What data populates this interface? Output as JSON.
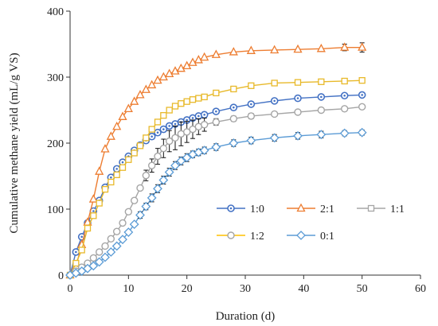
{
  "chart_data": {
    "type": "line",
    "title": "",
    "xlabel": "Duration (d)",
    "ylabel": "Cumulative methane yield (mL/g VS)",
    "xlim": [
      0,
      60
    ],
    "ylim": [
      0,
      400
    ],
    "xticks": [
      "0",
      "10",
      "20",
      "30",
      "40",
      "50",
      "60"
    ],
    "yticks": [
      "0",
      "100",
      "200",
      "300",
      "400"
    ],
    "grid": false,
    "legend_position": "inside-bottom-right",
    "series": [
      {
        "name": "1:0",
        "color": "#4472C4",
        "marker": "circle-dot",
        "x": [
          0,
          1,
          2,
          3,
          4,
          5,
          6,
          7,
          8,
          9,
          10,
          11,
          12,
          13,
          14,
          15,
          16,
          17,
          18,
          19,
          20,
          21,
          22,
          23,
          25,
          28,
          31,
          35,
          39,
          43,
          47,
          50
        ],
        "y": [
          0,
          35,
          58,
          79,
          97,
          113,
          133,
          148,
          161,
          171,
          180,
          189,
          197,
          204,
          210,
          216,
          221,
          226,
          229,
          232,
          235,
          238,
          241,
          243,
          248,
          254,
          259,
          264,
          268,
          270,
          272,
          273
        ],
        "err": [
          0,
          0,
          0,
          0,
          0,
          0,
          0,
          0,
          0,
          0,
          0,
          0,
          0,
          0,
          0,
          0,
          0,
          0,
          0,
          0,
          0,
          0,
          0,
          0,
          0,
          0,
          0,
          0,
          0,
          0,
          0,
          0
        ]
      },
      {
        "name": "2:1",
        "color": "#ED7D31",
        "marker": "triangle",
        "x": [
          0,
          1,
          2,
          3,
          4,
          5,
          6,
          7,
          8,
          9,
          10,
          11,
          12,
          13,
          14,
          15,
          16,
          17,
          18,
          19,
          20,
          21,
          22,
          23,
          25,
          28,
          31,
          35,
          39,
          43,
          47,
          50
        ],
        "y": [
          0,
          13,
          46,
          80,
          115,
          157,
          191,
          210,
          225,
          240,
          252,
          263,
          273,
          281,
          288,
          295,
          300,
          305,
          309,
          313,
          317,
          322,
          326,
          330,
          334,
          338,
          340,
          341,
          342,
          343,
          345,
          345
        ],
        "err": [
          0,
          0,
          0,
          0,
          0,
          0,
          0,
          0,
          0,
          0,
          0,
          0,
          0,
          0,
          0,
          0,
          0,
          0,
          0,
          0,
          0,
          0,
          0,
          0,
          0,
          0,
          0,
          0,
          0,
          0,
          5,
          7
        ]
      },
      {
        "name": "1:1",
        "color": "#A5A5A5",
        "marker": "square",
        "x": [
          0,
          1,
          2,
          3,
          4,
          5,
          6,
          7,
          8,
          9,
          10,
          11,
          12,
          13,
          14,
          15,
          16,
          17,
          18,
          19,
          20,
          21,
          22,
          23,
          25,
          28,
          31,
          35,
          39,
          43,
          47,
          50
        ],
        "y": [
          0,
          0,
          0,
          0,
          0,
          0,
          0,
          0,
          0,
          0,
          0,
          0,
          0,
          0,
          0,
          0,
          0,
          0,
          0,
          0,
          0,
          0,
          0,
          0,
          0,
          0,
          0,
          0,
          0,
          0,
          0,
          0
        ],
        "err": [
          0,
          0,
          0,
          0,
          0,
          0,
          0,
          0,
          0,
          0,
          0,
          0,
          0,
          0,
          0,
          0,
          0,
          0,
          0,
          0,
          0,
          0,
          0,
          0,
          0,
          0,
          0,
          0,
          0,
          0,
          0,
          0
        ],
        "hidden": true
      },
      {
        "name": "1:1",
        "color": "#E8B92A",
        "marker": "square",
        "legend_color": "#FFC000",
        "x": [
          0,
          1,
          2,
          3,
          4,
          5,
          6,
          7,
          8,
          9,
          10,
          11,
          12,
          13,
          14,
          15,
          16,
          17,
          18,
          19,
          20,
          21,
          22,
          23,
          25,
          28,
          31,
          35,
          39,
          43,
          47,
          50
        ],
        "y": [
          0,
          18,
          38,
          71,
          90,
          109,
          130,
          141,
          152,
          163,
          175,
          185,
          196,
          208,
          221,
          232,
          242,
          250,
          256,
          260,
          263,
          266,
          268,
          270,
          276,
          282,
          287,
          291,
          292,
          293,
          294,
          295
        ],
        "err": [
          0,
          0,
          0,
          0,
          0,
          0,
          0,
          0,
          0,
          0,
          0,
          0,
          0,
          0,
          0,
          0,
          0,
          0,
          0,
          0,
          0,
          0,
          0,
          0,
          0,
          0,
          0,
          0,
          0,
          0,
          0,
          0
        ]
      },
      {
        "name": "1:2",
        "color": "#A5A5A5",
        "marker": "circle",
        "x": [
          0,
          1,
          2,
          3,
          4,
          5,
          6,
          7,
          8,
          9,
          10,
          11,
          12,
          13,
          14,
          15,
          16,
          17,
          18,
          19,
          20,
          21,
          22,
          23,
          25,
          28,
          31,
          35,
          39,
          43,
          47,
          50
        ],
        "y": [
          0,
          6,
          12,
          18,
          26,
          35,
          44,
          55,
          66,
          79,
          96,
          113,
          132,
          151,
          166,
          180,
          192,
          203,
          208,
          214,
          217,
          221,
          225,
          228,
          232,
          237,
          241,
          244,
          247,
          250,
          252,
          255
        ],
        "err": [
          0,
          0,
          0,
          0,
          0,
          0,
          0,
          0,
          0,
          0,
          0,
          0,
          0,
          8,
          10,
          12,
          14,
          16,
          18,
          18,
          16,
          14,
          12,
          10,
          5,
          4,
          4,
          3,
          3,
          3,
          3,
          3
        ]
      },
      {
        "name": "0:1",
        "color": "#5B9BD5",
        "marker": "diamond",
        "x": [
          0,
          1,
          2,
          3,
          4,
          5,
          6,
          7,
          8,
          9,
          10,
          11,
          12,
          13,
          14,
          15,
          16,
          17,
          18,
          19,
          20,
          21,
          22,
          23,
          25,
          28,
          31,
          35,
          39,
          43,
          47,
          50
        ],
        "y": [
          0,
          3,
          6,
          10,
          14,
          20,
          27,
          35,
          44,
          54,
          65,
          77,
          91,
          104,
          117,
          131,
          144,
          156,
          166,
          173,
          178,
          183,
          186,
          189,
          194,
          200,
          204,
          208,
          211,
          213,
          215,
          216
        ],
        "err": [
          0,
          0,
          0,
          0,
          0,
          0,
          0,
          0,
          0,
          0,
          0,
          0,
          5,
          5,
          6,
          6,
          6,
          6,
          6,
          6,
          6,
          5,
          5,
          5,
          5,
          5,
          5,
          5,
          5,
          5,
          4,
          4
        ]
      }
    ]
  }
}
